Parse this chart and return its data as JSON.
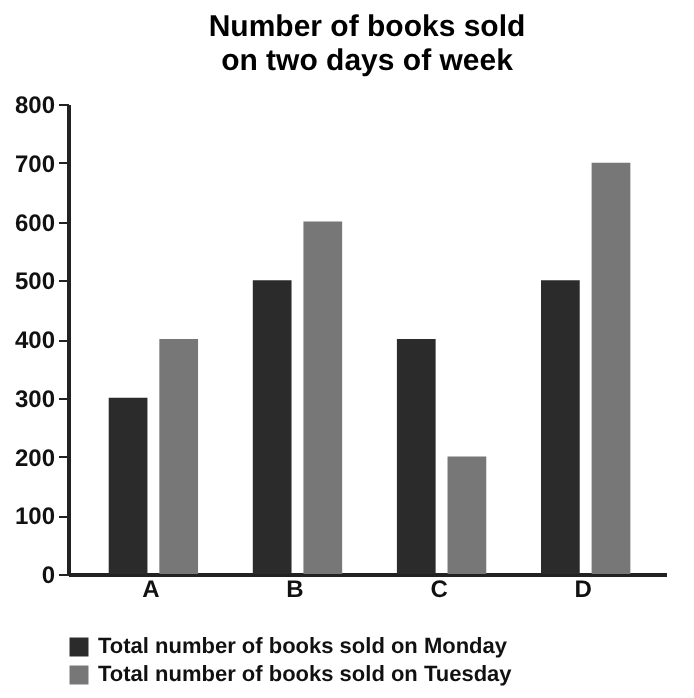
{
  "chart_data": {
    "type": "bar",
    "title": "Number of books sold on two days of week",
    "categories": [
      "A",
      "B",
      "C",
      "D"
    ],
    "series": [
      {
        "name": "Total number of books sold on Monday",
        "color": "#2b2b2b",
        "values": [
          300,
          500,
          400,
          500
        ]
      },
      {
        "name": "Total number of books sold on Tuesday",
        "color": "#777777",
        "values": [
          400,
          600,
          200,
          700
        ]
      }
    ],
    "ylim": [
      0,
      800
    ],
    "yticks": [
      0,
      100,
      200,
      300,
      400,
      500,
      600,
      700,
      800
    ],
    "grid": false,
    "legend": "bottom"
  }
}
